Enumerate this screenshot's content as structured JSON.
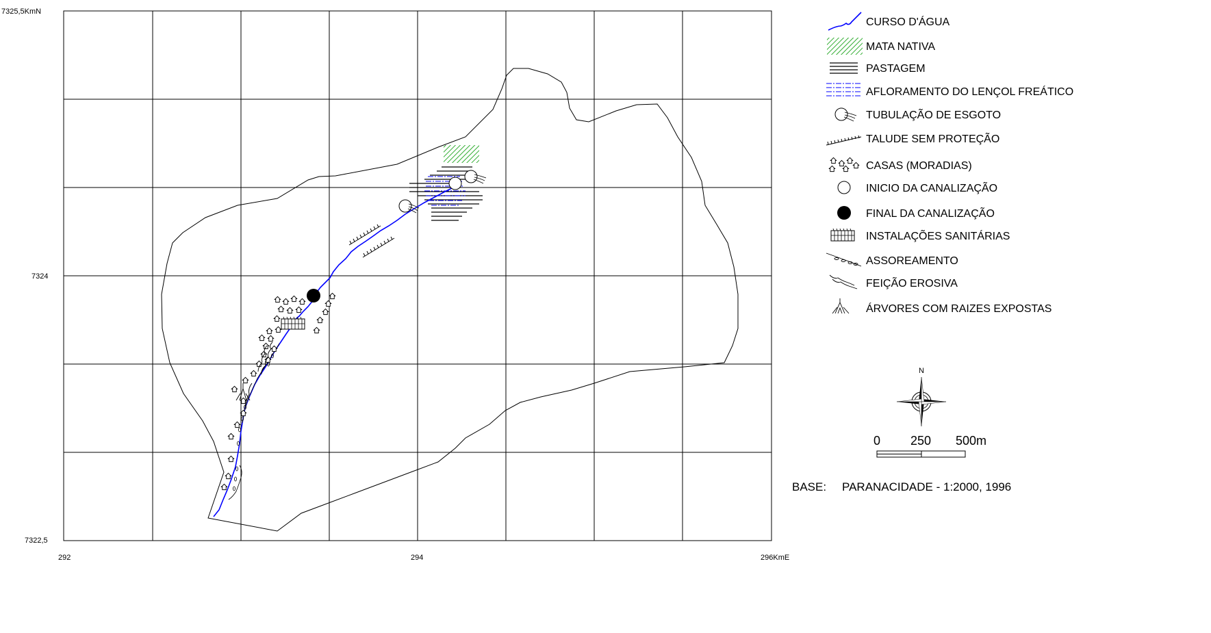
{
  "axes": {
    "y_top_label": "7325,5KmN",
    "y_mid_label": "7324",
    "y_bottom_label": "7322,5",
    "x_left_label": "292",
    "x_mid_label": "294",
    "x_right_label": "296KmE"
  },
  "legend": [
    {
      "id": "curso",
      "label": "CURSO D'ÁGUA",
      "icon": "water-course-icon"
    },
    {
      "id": "mata",
      "label": "MATA NATIVA",
      "icon": "native-forest-icon"
    },
    {
      "id": "pastagem",
      "label": "PASTAGEM",
      "icon": "pasture-icon"
    },
    {
      "id": "afloramento",
      "label": "AFLORAMENTO DO LENÇOL FREÁTICO",
      "icon": "water-table-icon"
    },
    {
      "id": "tubulacao",
      "label": "TUBULAÇÃO DE ESGOTO",
      "icon": "sewer-pipe-icon"
    },
    {
      "id": "talude",
      "label": "TALUDE SEM PROTEÇÃO",
      "icon": "unprotected-slope-icon"
    },
    {
      "id": "casas",
      "label": "CASAS (MORADIAS)",
      "icon": "houses-icon"
    },
    {
      "id": "inicio",
      "label": "INICIO DA CANALIZAÇÃO",
      "icon": "canal-start-icon"
    },
    {
      "id": "final",
      "label": "FINAL DA CANALIZAÇÃO",
      "icon": "canal-end-icon"
    },
    {
      "id": "instalacoes",
      "label": "INSTALAÇÕES SANITÁRIAS",
      "icon": "sanitary-facilities-icon"
    },
    {
      "id": "assoreamento",
      "label": "ASSOREAMENTO",
      "icon": "siltation-icon"
    },
    {
      "id": "feicao",
      "label": "FEIÇÃO EROSIVA",
      "icon": "erosion-feature-icon"
    },
    {
      "id": "arvores",
      "label": "ÁRVORES COM RAIZES EXPOSTAS",
      "icon": "exposed-roots-tree-icon"
    }
  ],
  "north_label": "N",
  "scale": {
    "labels": [
      "0",
      "250",
      "500m"
    ]
  },
  "base": {
    "prefix": "BASE:",
    "text": "PARANACIDADE - 1:2000, 1996"
  },
  "colors": {
    "water": "#0000ff",
    "forest": "#009900",
    "water_table": "#0000ff",
    "line": "#000000"
  }
}
